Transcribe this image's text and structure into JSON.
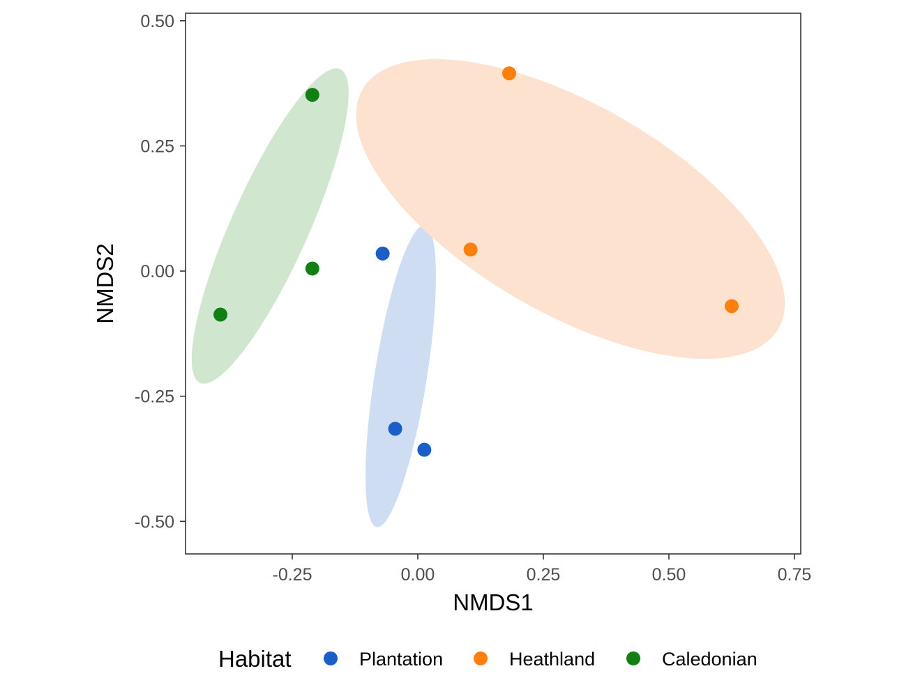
{
  "chart_data": {
    "type": "scatter",
    "xlabel": "NMDS1",
    "ylabel": "NMDS2",
    "xlim": [
      -0.4625,
      0.7625
    ],
    "ylim": [
      -0.565,
      0.515
    ],
    "x_ticks": [
      -0.25,
      0.0,
      0.25,
      0.5,
      0.75
    ],
    "x_tick_labels": [
      "-0.25",
      "0.00",
      "0.25",
      "0.50",
      "0.75"
    ],
    "y_ticks": [
      -0.5,
      -0.25,
      0.0,
      0.25,
      0.5
    ],
    "y_tick_labels": [
      "-0.50",
      "-0.25",
      "0.00",
      "0.25",
      "0.50"
    ],
    "grid": false,
    "legend": {
      "title": "Habitat",
      "position": "bottom"
    },
    "series": [
      {
        "name": "Plantation",
        "color": "#1a5fc7",
        "ellipse_color": "#cfddf3",
        "points": [
          {
            "x": -0.07,
            "y": 0.035
          },
          {
            "x": -0.045,
            "y": -0.315
          },
          {
            "x": 0.013,
            "y": -0.357
          }
        ],
        "ellipse": {
          "cx": -0.034,
          "cy": -0.21,
          "a": 0.305,
          "b": 0.052,
          "angle_deg": 81
        }
      },
      {
        "name": "Heathland",
        "color": "#ff7f0e",
        "ellipse_color": "#fde2cf",
        "points": [
          {
            "x": 0.182,
            "y": 0.395
          },
          {
            "x": 0.105,
            "y": 0.043
          },
          {
            "x": 0.625,
            "y": -0.07
          }
        ],
        "ellipse": {
          "cx": 0.304,
          "cy": 0.124,
          "a": 0.478,
          "b": 0.208,
          "angle_deg": -30
        }
      },
      {
        "name": "Caledonian",
        "color": "#127f12",
        "ellipse_color": "#d0e6cf",
        "points": [
          {
            "x": -0.21,
            "y": 0.352
          },
          {
            "x": -0.21,
            "y": 0.005
          },
          {
            "x": -0.393,
            "y": -0.087
          }
        ],
        "ellipse": {
          "cx": -0.294,
          "cy": 0.09,
          "a": 0.343,
          "b": 0.077,
          "angle_deg": 66
        }
      }
    ]
  }
}
